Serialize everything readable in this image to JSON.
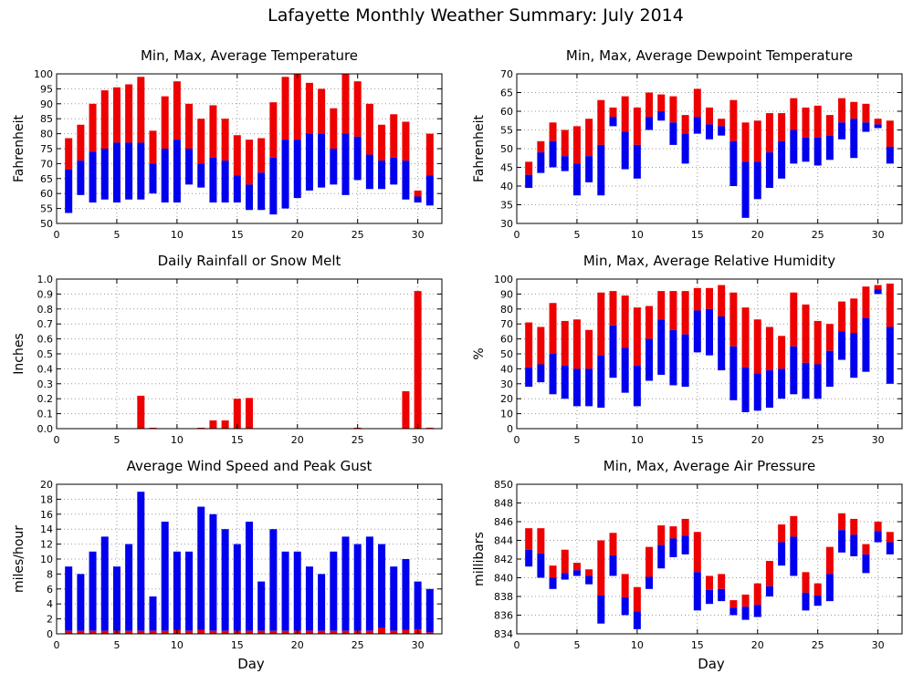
{
  "page_title": "Lafayette Monthly Weather Summary: July 2014",
  "colors": {
    "max_part": "#ee0000",
    "min_part": "#0000ee",
    "frame": "#000000",
    "grid": "#999999"
  },
  "shared_xlabel": "Day",
  "chart_data": [
    {
      "id": "temperature",
      "type": "bar",
      "subtype": "floating-range",
      "title": "Min, Max, Average Temperature",
      "xlabel": "",
      "ylabel": "Fahrenheit",
      "xlim": [
        0,
        32
      ],
      "ylim": [
        50,
        100
      ],
      "xticks": [
        0,
        5,
        10,
        15,
        20,
        25,
        30
      ],
      "yticks": [
        50,
        55,
        60,
        65,
        70,
        75,
        80,
        85,
        90,
        95,
        100
      ],
      "series_order": [
        "min",
        "avg",
        "max"
      ],
      "days": [
        1,
        2,
        3,
        4,
        5,
        6,
        7,
        8,
        9,
        10,
        11,
        12,
        13,
        14,
        15,
        16,
        17,
        18,
        19,
        20,
        21,
        22,
        23,
        24,
        25,
        26,
        27,
        28,
        29,
        30,
        31
      ],
      "min": [
        53.5,
        59.5,
        57,
        58,
        57,
        58,
        58,
        60,
        57,
        57,
        63,
        62,
        57,
        57,
        57,
        54.5,
        54.5,
        53,
        55,
        58.5,
        61,
        62,
        63,
        59.5,
        64.5,
        61.5,
        61.5,
        63,
        58,
        57,
        56
      ],
      "avg": [
        68,
        71,
        74,
        75,
        77,
        77,
        77,
        70,
        75,
        78,
        75,
        70,
        72,
        71,
        66,
        63,
        67,
        72,
        78,
        78,
        80,
        80,
        75,
        80,
        79,
        73,
        71,
        72,
        71,
        59,
        66
      ],
      "max": [
        78.5,
        83,
        90,
        94.5,
        95.5,
        96.5,
        99,
        81,
        92.5,
        97.5,
        90,
        85,
        89.5,
        85,
        79.5,
        78,
        78.5,
        90.5,
        99,
        100,
        97,
        95,
        88.5,
        100,
        97.5,
        90,
        83,
        86.5,
        84,
        61,
        80
      ]
    },
    {
      "id": "dewpoint",
      "type": "bar",
      "subtype": "floating-range",
      "title": "Min, Max, Average Dewpoint Temperature",
      "xlabel": "",
      "ylabel": "Fahrenheit",
      "xlim": [
        0,
        32
      ],
      "ylim": [
        30,
        70
      ],
      "xticks": [
        0,
        5,
        10,
        15,
        20,
        25,
        30
      ],
      "yticks": [
        30,
        35,
        40,
        45,
        50,
        55,
        60,
        65,
        70
      ],
      "series_order": [
        "min",
        "avg",
        "max"
      ],
      "days": [
        1,
        2,
        3,
        4,
        5,
        6,
        7,
        8,
        9,
        10,
        11,
        12,
        13,
        14,
        15,
        16,
        17,
        18,
        19,
        20,
        21,
        22,
        23,
        24,
        25,
        26,
        27,
        28,
        29,
        30,
        31
      ],
      "min": [
        39.5,
        43.5,
        45,
        44,
        37.5,
        41,
        37.5,
        56,
        44.5,
        42,
        55,
        57.5,
        51,
        46,
        54,
        52.5,
        53.5,
        40,
        31.5,
        36.5,
        39.5,
        42,
        46,
        46.5,
        45.5,
        47,
        52.5,
        47.5,
        54.5,
        55.5,
        46
      ],
      "avg": [
        43,
        49,
        52,
        48,
        46,
        48,
        51,
        58.5,
        54.5,
        51,
        58.5,
        60,
        57,
        54,
        58.5,
        56.5,
        56,
        52,
        46.5,
        46.5,
        49,
        52,
        55,
        53,
        53,
        53.5,
        57,
        58,
        57,
        56.5,
        50.5
      ],
      "max": [
        46.5,
        52,
        57,
        55,
        56,
        58,
        63,
        61,
        64,
        61,
        65,
        64.5,
        64,
        59,
        66,
        61,
        58,
        63,
        57,
        57.5,
        59.5,
        59.5,
        63.5,
        61,
        61.5,
        59,
        63.5,
        62.5,
        62,
        58,
        57.5
      ]
    },
    {
      "id": "rainfall",
      "type": "bar",
      "title": "Daily Rainfall or Snow Melt",
      "xlabel": "",
      "ylabel": "Inches",
      "xlim": [
        0,
        32
      ],
      "ylim": [
        0,
        1.0
      ],
      "xticks": [
        0,
        5,
        10,
        15,
        20,
        25,
        30
      ],
      "yticks": [
        0,
        0.1,
        0.2,
        0.3,
        0.4,
        0.5,
        0.6,
        0.7,
        0.8,
        0.9,
        1.0
      ],
      "ytick_labels": [
        "0.0",
        "0.1",
        "0.2",
        "0.3",
        "0.4",
        "0.5",
        "0.6",
        "0.7",
        "0.8",
        "0.9",
        "1.0"
      ],
      "days": [
        7,
        8,
        12,
        13,
        14,
        15,
        16,
        25,
        29,
        30,
        31
      ],
      "values": [
        0.22,
        0.005,
        0.005,
        0.055,
        0.055,
        0.2,
        0.205,
        0.005,
        0.25,
        0.92,
        0.005
      ]
    },
    {
      "id": "humidity",
      "type": "bar",
      "subtype": "floating-range",
      "title": "Min, Max, Average Relative Humidity",
      "xlabel": "",
      "ylabel": "%",
      "xlim": [
        0,
        32
      ],
      "ylim": [
        0,
        100
      ],
      "xticks": [
        0,
        5,
        10,
        15,
        20,
        25,
        30
      ],
      "yticks": [
        0,
        10,
        20,
        30,
        40,
        50,
        60,
        70,
        80,
        90,
        100
      ],
      "series_order": [
        "min",
        "avg",
        "max"
      ],
      "days": [
        1,
        2,
        3,
        4,
        5,
        6,
        7,
        8,
        9,
        10,
        11,
        12,
        13,
        14,
        15,
        16,
        17,
        18,
        19,
        20,
        21,
        22,
        23,
        24,
        25,
        26,
        27,
        28,
        29,
        30,
        31
      ],
      "min": [
        28,
        31,
        23,
        20,
        15,
        15,
        14,
        34,
        24,
        15,
        32,
        36,
        29,
        28,
        51,
        49,
        39,
        19,
        11,
        12,
        14,
        20,
        23,
        20,
        20,
        28,
        46,
        34,
        38,
        90,
        30
      ],
      "avg": [
        41,
        43,
        50,
        42,
        40,
        40,
        49,
        69,
        54,
        42,
        60,
        73,
        66,
        63,
        79,
        80,
        75,
        55,
        41,
        37,
        39,
        40,
        55,
        44,
        43,
        52,
        65,
        64,
        74,
        93,
        68
      ],
      "max": [
        71,
        68,
        84,
        72,
        73,
        66,
        91,
        92,
        89,
        81,
        82,
        92,
        92,
        92,
        94,
        94,
        96,
        91,
        81,
        73,
        68,
        62,
        91,
        83,
        72,
        70,
        85,
        87,
        95,
        96,
        97
      ]
    },
    {
      "id": "wind",
      "type": "bar",
      "subtype": "stacked",
      "title": "Average Wind Speed and Peak Gust",
      "xlabel": "Day",
      "ylabel": "miles/hour",
      "xlim": [
        0,
        32
      ],
      "ylim": [
        0,
        20
      ],
      "xticks": [
        0,
        5,
        10,
        15,
        20,
        25,
        30
      ],
      "yticks": [
        0,
        2,
        4,
        6,
        8,
        10,
        12,
        14,
        16,
        18,
        20
      ],
      "days": [
        1,
        2,
        3,
        4,
        5,
        6,
        7,
        8,
        9,
        10,
        11,
        12,
        13,
        14,
        15,
        16,
        17,
        18,
        19,
        20,
        21,
        22,
        23,
        24,
        25,
        26,
        27,
        28,
        29,
        30,
        31
      ],
      "avg_speed": [
        0.4,
        0.4,
        0.4,
        0.4,
        0.4,
        0.4,
        0.4,
        0.4,
        0.4,
        0.5,
        0.4,
        0.5,
        0.4,
        0.4,
        0.4,
        0.4,
        0.4,
        0.4,
        0.4,
        0.4,
        0.4,
        0.4,
        0.4,
        0.4,
        0.4,
        0.4,
        0.8,
        0.4,
        0.5,
        0.6,
        0.2
      ],
      "peak_gust": [
        9,
        8,
        11,
        13,
        9,
        12,
        19,
        5,
        15,
        11,
        11,
        17,
        16,
        14,
        12,
        15,
        7,
        14,
        11,
        11,
        9,
        8,
        11,
        13,
        12,
        13,
        12,
        9,
        10,
        7,
        6
      ]
    },
    {
      "id": "pressure",
      "type": "bar",
      "subtype": "floating-range",
      "title": "Min, Max, Average Air Pressure",
      "xlabel": "Day",
      "ylabel": "millibars",
      "xlim": [
        0,
        32
      ],
      "ylim": [
        834,
        850
      ],
      "xticks": [
        0,
        5,
        10,
        15,
        20,
        25,
        30
      ],
      "yticks": [
        834,
        836,
        838,
        840,
        842,
        844,
        846,
        848,
        850
      ],
      "series_order": [
        "min",
        "avg",
        "max"
      ],
      "days": [
        1,
        2,
        3,
        4,
        5,
        6,
        7,
        8,
        9,
        10,
        11,
        12,
        13,
        14,
        15,
        16,
        17,
        18,
        19,
        20,
        21,
        22,
        23,
        24,
        25,
        26,
        27,
        28,
        29,
        30,
        31
      ],
      "min": [
        841.2,
        840,
        838.8,
        839.8,
        840.2,
        839.3,
        835.1,
        840.2,
        836,
        834.5,
        838.8,
        841,
        842.2,
        842.5,
        836.5,
        837.2,
        837.5,
        836,
        835.5,
        835.8,
        838,
        841.3,
        840.2,
        836.5,
        837,
        837.5,
        842.7,
        842.3,
        840.5,
        843.8,
        842.5
      ],
      "avg": [
        843,
        842.6,
        840,
        840.5,
        840.8,
        840.2,
        838.1,
        842.4,
        837.9,
        836.4,
        840.1,
        843.5,
        844.2,
        844.5,
        840.6,
        838.7,
        838.8,
        836.8,
        836.9,
        837.1,
        839.1,
        843.8,
        844.4,
        838.4,
        838.1,
        840.4,
        845.1,
        844.6,
        842.5,
        845,
        843.8
      ],
      "max": [
        845.3,
        845.3,
        841.3,
        843,
        841.6,
        840.9,
        844,
        844.8,
        840.4,
        839,
        843.3,
        845.6,
        845.5,
        846.3,
        844.9,
        840.2,
        840.4,
        837.6,
        838.2,
        839.4,
        841.8,
        845.7,
        846.6,
        840.6,
        839.4,
        843.3,
        846.9,
        846.3,
        843.6,
        846,
        844.9
      ]
    }
  ]
}
